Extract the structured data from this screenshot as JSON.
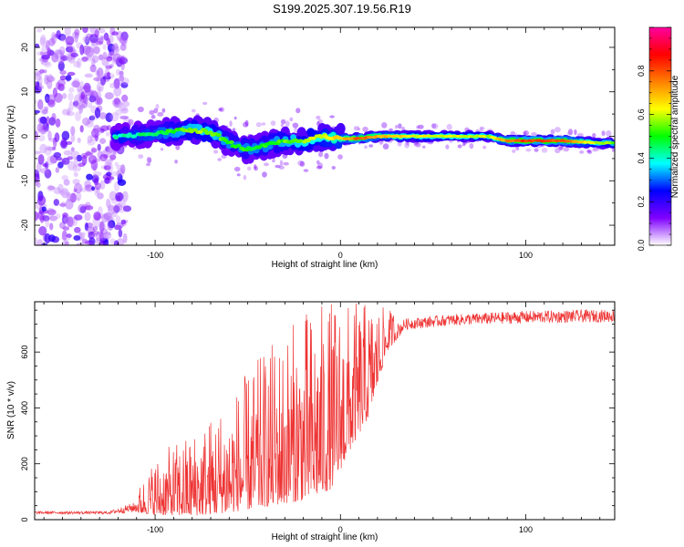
{
  "title": "S199.2025.307.19.56.R19",
  "chart_data": [
    {
      "type": "heatmap",
      "title": "S199.2025.307.19.56.R19",
      "xlabel": "Height of straight line (km)",
      "ylabel": "Frequency (Hz)",
      "xlim": [
        -165,
        148
      ],
      "ylim": [
        -24.5,
        24.5
      ],
      "x_ticks": [
        -100,
        0,
        100
      ],
      "y_ticks": [
        -20,
        -10,
        0,
        10,
        20
      ],
      "colorbar": {
        "label": "Normalized spectral amplitude",
        "range": [
          0,
          1
        ],
        "ticks": [
          "0.0",
          "0.2",
          "0.4",
          "0.6",
          "0.8"
        ],
        "colors": [
          "#ffffff",
          "#8000ff",
          "#0000ff",
          "#00ffff",
          "#00ff00",
          "#ffff00",
          "#ff8000",
          "#ff0000",
          "#ff00a0"
        ]
      },
      "ridge": [
        {
          "x": -120,
          "f": 0.0,
          "a": 0.35
        },
        {
          "x": -100,
          "f": 0.5,
          "a": 0.4
        },
        {
          "x": -85,
          "f": 1.5,
          "a": 0.5
        },
        {
          "x": -70,
          "f": 1.0,
          "a": 0.55
        },
        {
          "x": -60,
          "f": -1.5,
          "a": 0.45
        },
        {
          "x": -50,
          "f": -3.0,
          "a": 0.45
        },
        {
          "x": -40,
          "f": -2.0,
          "a": 0.45
        },
        {
          "x": -30,
          "f": -1.0,
          "a": 0.5
        },
        {
          "x": -20,
          "f": -1.0,
          "a": 0.55
        },
        {
          "x": -10,
          "f": 0.0,
          "a": 0.6
        },
        {
          "x": 0,
          "f": -0.5,
          "a": 0.65
        },
        {
          "x": 10,
          "f": -0.5,
          "a": 0.8
        },
        {
          "x": 20,
          "f": 0.0,
          "a": 0.7
        },
        {
          "x": 40,
          "f": 0.0,
          "a": 0.6
        },
        {
          "x": 60,
          "f": 0.0,
          "a": 0.6
        },
        {
          "x": 80,
          "f": 0.0,
          "a": 0.55
        },
        {
          "x": 90,
          "f": -1.0,
          "a": 0.75
        },
        {
          "x": 100,
          "f": -1.0,
          "a": 0.85
        },
        {
          "x": 120,
          "f": -1.0,
          "a": 0.8
        },
        {
          "x": 140,
          "f": -1.5,
          "a": 0.55
        },
        {
          "x": 148,
          "f": -1.5,
          "a": 0.5
        }
      ],
      "noise_region": {
        "x_from": -165,
        "x_to": -115,
        "f_from": -24.5,
        "f_to": 24.5
      }
    },
    {
      "type": "line",
      "xlabel": "Height of straight line (km)",
      "ylabel": "SNR (10 * v/v)",
      "xlim": [
        -165,
        148
      ],
      "ylim": [
        0,
        780
      ],
      "x_ticks": [
        -100,
        0,
        100
      ],
      "y_ticks": [
        0,
        200,
        400,
        600
      ],
      "series": [
        {
          "name": "SNR",
          "color": "#ee3333",
          "envelope": [
            {
              "x": -165,
              "mean": 25,
              "spread": 10
            },
            {
              "x": -125,
              "mean": 25,
              "spread": 10
            },
            {
              "x": -110,
              "mean": 45,
              "spread": 40
            },
            {
              "x": -100,
              "mean": 70,
              "spread": 110
            },
            {
              "x": -80,
              "mean": 90,
              "spread": 160
            },
            {
              "x": -60,
              "mean": 130,
              "spread": 220
            },
            {
              "x": -40,
              "mean": 190,
              "spread": 300
            },
            {
              "x": -20,
              "mean": 240,
              "spread": 360
            },
            {
              "x": -5,
              "mean": 280,
              "spread": 360
            },
            {
              "x": 5,
              "mean": 380,
              "spread": 280
            },
            {
              "x": 15,
              "mean": 470,
              "spread": 220
            },
            {
              "x": 25,
              "mean": 640,
              "spread": 80
            },
            {
              "x": 35,
              "mean": 700,
              "spread": 40
            },
            {
              "x": 60,
              "mean": 715,
              "spread": 40
            },
            {
              "x": 100,
              "mean": 725,
              "spread": 45
            },
            {
              "x": 148,
              "mean": 730,
              "spread": 45
            }
          ]
        }
      ]
    }
  ]
}
